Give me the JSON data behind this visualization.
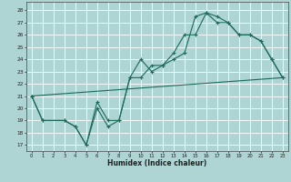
{
  "xlabel": "Humidex (Indice chaleur)",
  "bg_color": "#aed4d4",
  "grid_color": "#ffffff",
  "line_color": "#1a6b5a",
  "xlim": [
    -0.5,
    23.5
  ],
  "ylim": [
    16.5,
    28.7
  ],
  "yticks": [
    17,
    18,
    19,
    20,
    21,
    22,
    23,
    24,
    25,
    26,
    27,
    28
  ],
  "xticks": [
    0,
    1,
    2,
    3,
    4,
    5,
    6,
    7,
    8,
    9,
    10,
    11,
    12,
    13,
    14,
    15,
    16,
    17,
    18,
    19,
    20,
    21,
    22,
    23
  ],
  "line1_x": [
    0,
    1,
    3,
    4,
    5,
    6,
    7,
    8,
    9,
    10,
    11,
    12,
    13,
    14,
    15,
    16,
    17,
    18,
    19,
    20,
    21,
    22,
    23
  ],
  "line1_y": [
    21.0,
    19.0,
    19.0,
    18.5,
    17.0,
    20.0,
    18.5,
    19.0,
    22.5,
    22.5,
    23.5,
    23.5,
    24.0,
    24.5,
    27.5,
    27.8,
    27.5,
    27.0,
    26.0,
    26.0,
    25.5,
    24.0,
    22.5
  ],
  "line2_x": [
    0,
    1,
    3,
    4,
    5,
    6,
    7,
    8,
    9,
    10,
    11,
    12,
    13,
    14,
    15,
    16,
    17,
    18,
    19,
    20,
    21,
    22,
    23
  ],
  "line2_y": [
    21.0,
    19.0,
    19.0,
    18.5,
    17.0,
    20.5,
    19.0,
    19.0,
    22.5,
    24.0,
    23.0,
    23.5,
    24.5,
    26.0,
    26.0,
    27.8,
    27.0,
    27.0,
    26.0,
    26.0,
    25.5,
    24.0,
    22.5
  ],
  "line3_x": [
    0,
    23
  ],
  "line3_y": [
    21.0,
    22.5
  ]
}
